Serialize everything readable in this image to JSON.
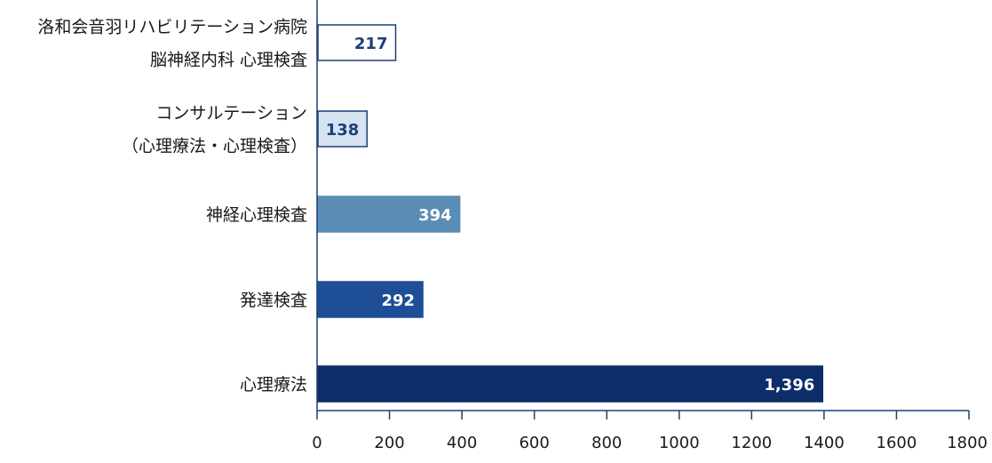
{
  "chart_data": {
    "type": "bar",
    "orientation": "horizontal",
    "categories": [
      [
        "洛和会音羽リハビリテーション病院",
        "脳神経内科 心理検査"
      ],
      [
        "コンサルテーション",
        "（心理療法・心理検査）"
      ],
      [
        "神経心理検査"
      ],
      [
        "発達検査"
      ],
      [
        "心理療法"
      ]
    ],
    "values": [
      217,
      138,
      394,
      292,
      1396
    ],
    "value_labels": [
      "217",
      "138",
      "394",
      "292",
      "1,396"
    ],
    "xlim": [
      0,
      1800
    ],
    "x_ticks": [
      0,
      200,
      400,
      600,
      800,
      1000,
      1200,
      1400,
      1600,
      1800
    ],
    "grid": false,
    "legend": "none",
    "title": "",
    "xlabel": "",
    "ylabel": ""
  },
  "colors": {
    "bar_fills": [
      "#ffffff",
      "#d6e3f1",
      "#5a8db5",
      "#1e4e95",
      "#0c2d68"
    ],
    "bar_strokes": [
      "#1b3f7a",
      "#1b3f7a",
      "#5a8db5",
      "#1e4e95",
      "#0c2d68"
    ],
    "value_text": [
      "#1b3f7a",
      "#1b3f7a",
      "#ffffff",
      "#ffffff",
      "#ffffff"
    ],
    "axis": "#1f3f73"
  }
}
